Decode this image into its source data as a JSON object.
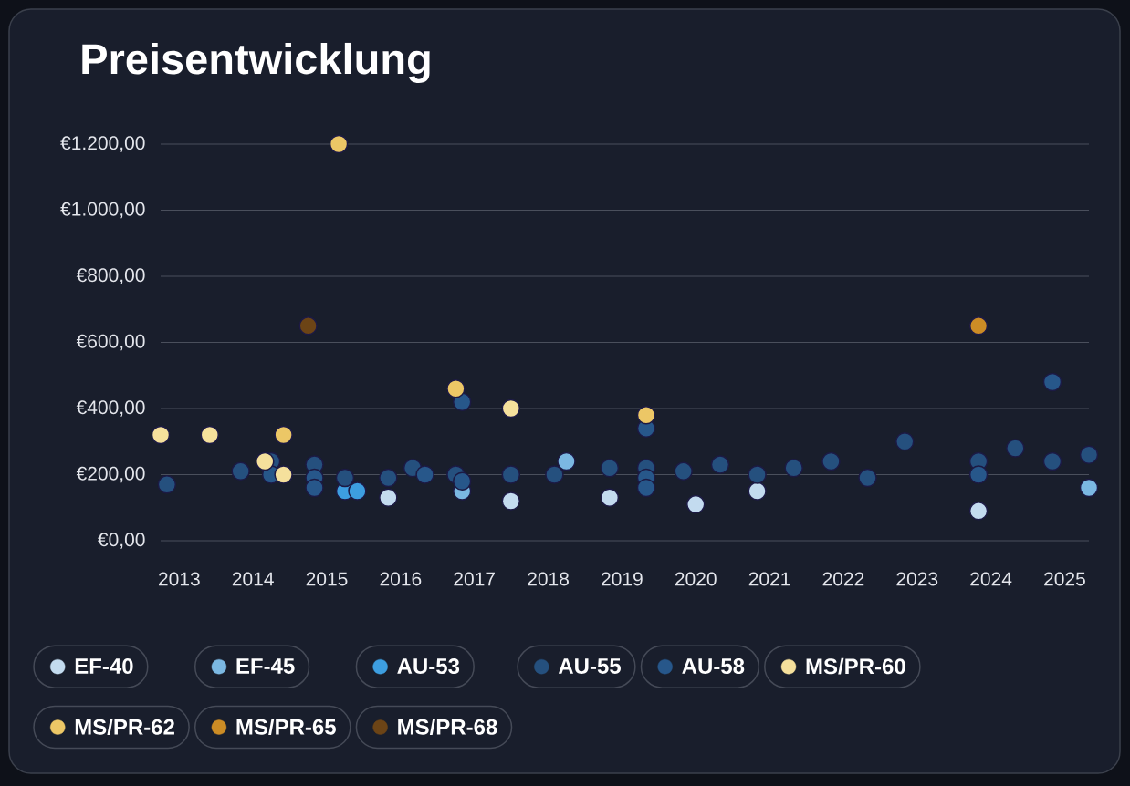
{
  "chart_data": {
    "type": "scatter",
    "title": "Preisentwicklung",
    "xlim": [
      "2012-10",
      "2025-05"
    ],
    "ylim": [
      0,
      1200
    ],
    "xticks": [
      {
        "value": "2013-01-01",
        "label": "2013"
      },
      {
        "value": "2014-01-01",
        "label": "2014"
      },
      {
        "value": "2015-01-01",
        "label": "2015"
      },
      {
        "value": "2016-01-01",
        "label": "2016"
      },
      {
        "value": "2017-01-01",
        "label": "2017"
      },
      {
        "value": "2018-01-01",
        "label": "2018"
      },
      {
        "value": "2019-01-01",
        "label": "2019"
      },
      {
        "value": "2020-01-01",
        "label": "2020"
      },
      {
        "value": "2021-01-01",
        "label": "2021"
      },
      {
        "value": "2022-01-01",
        "label": "2022"
      },
      {
        "value": "2023-01-01",
        "label": "2023"
      },
      {
        "value": "2024-01-01",
        "label": "2024"
      },
      {
        "value": "2025-01-01",
        "label": "2025"
      }
    ],
    "yticks": [
      {
        "value": 0,
        "label": "€0,00"
      },
      {
        "value": 200,
        "label": "€200,00"
      },
      {
        "value": 400,
        "label": "€400,00"
      },
      {
        "value": 600,
        "label": "€600,00"
      },
      {
        "value": 800,
        "label": "€800,00"
      },
      {
        "value": 1000,
        "label": "€1.000,00"
      },
      {
        "value": 1200,
        "label": "€1.200,00"
      }
    ],
    "grid": "y",
    "legend": "bottom",
    "marker": "circle",
    "series": [
      {
        "name": "EF-40",
        "color": "#c3dbef",
        "x": [
          "2015-11",
          "2017-07",
          "2018-11",
          "2020-01",
          "2020-11",
          "2023-11"
        ],
        "values": [
          130,
          120,
          130,
          110,
          150,
          90
        ]
      },
      {
        "name": "EF-45",
        "color": "#7bb8e2",
        "x": [
          "2016-11",
          "2018-04",
          "2025-05"
        ],
        "values": [
          150,
          240,
          160
        ]
      },
      {
        "name": "AU-53",
        "color": "#3d9ee0",
        "x": [
          "2015-04",
          "2015-06"
        ],
        "values": [
          150,
          150
        ]
      },
      {
        "name": "AU-55",
        "color": "#25507e",
        "x": [
          "2012-11",
          "2013-11",
          "2014-04",
          "2014-11",
          "2015-04",
          "2015-11",
          "2016-03",
          "2016-10",
          "2017-07",
          "2018-02",
          "2018-11",
          "2019-05",
          "2019-11",
          "2020-05",
          "2020-11",
          "2021-05",
          "2021-11",
          "2022-05",
          "2022-11",
          "2023-11",
          "2024-05",
          "2024-11",
          "2025-05"
        ],
        "values": [
          170,
          210,
          240,
          230,
          190,
          190,
          220,
          200,
          200,
          200,
          220,
          220,
          210,
          230,
          200,
          220,
          240,
          190,
          300,
          240,
          280,
          240,
          260
        ]
      },
      {
        "name": "AU-58",
        "color": "#27578a",
        "x": [
          "2014-04",
          "2014-11",
          "2014-11",
          "2016-05",
          "2016-11",
          "2016-11",
          "2019-05",
          "2019-05",
          "2019-05",
          "2023-11",
          "2024-11"
        ],
        "values": [
          200,
          190,
          160,
          200,
          420,
          180,
          340,
          190,
          160,
          200,
          480
        ]
      },
      {
        "name": "MS/PR-60",
        "color": "#f5e09c",
        "x": [
          "2012-10",
          "2013-06",
          "2014-03",
          "2014-06",
          "2017-07"
        ],
        "values": [
          320,
          320,
          240,
          200,
          400
        ]
      },
      {
        "name": "MS/PR-62",
        "color": "#ecc766",
        "x": [
          "2014-06",
          "2015-03",
          "2016-10",
          "2019-05"
        ],
        "values": [
          320,
          1200,
          460,
          380
        ]
      },
      {
        "name": "MS/PR-65",
        "color": "#cc8c25",
        "x": [
          "2023-11"
        ],
        "values": [
          650
        ]
      },
      {
        "name": "MS/PR-68",
        "color": "#6c4416",
        "x": [
          "2014-10"
        ],
        "values": [
          650
        ]
      }
    ]
  }
}
